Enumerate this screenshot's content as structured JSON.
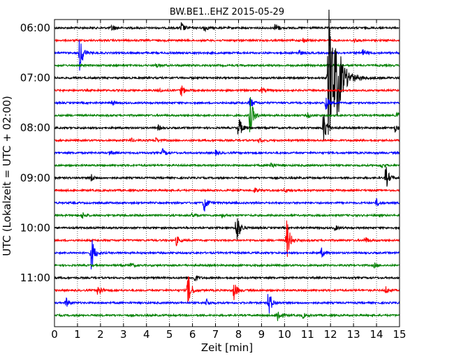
{
  "chart_data": {
    "type": "line",
    "title": "BW.BE1..EHZ 2015-05-29",
    "xlabel": "Zeit  [min]",
    "ylabel": "UTC (Lokalzeit = UTC + 02:00)",
    "xlim": [
      0,
      15
    ],
    "x_ticks": [
      "0",
      "1",
      "2",
      "3",
      "4",
      "5",
      "6",
      "7",
      "8",
      "9",
      "10",
      "11",
      "12",
      "13",
      "14",
      "15"
    ],
    "y_ticks": [
      "06:00",
      "07:00",
      "08:00",
      "09:00",
      "10:00",
      "11:00"
    ],
    "grid": "vertical dotted",
    "trace_interval_minutes": 15,
    "first_trace": "06:00",
    "colors": [
      "#000000",
      "#ff0000",
      "#0000ff",
      "#008000"
    ],
    "series": [
      {
        "start": "06:00",
        "events": [
          [
            2.5,
            0.3
          ],
          [
            5.5,
            0.5
          ],
          [
            6.5,
            0.3
          ],
          [
            9.6,
            0.4
          ]
        ]
      },
      {
        "start": "06:15",
        "events": [
          [
            10.8,
            0.2
          ],
          [
            13.0,
            0.15
          ]
        ]
      },
      {
        "start": "06:30",
        "events": [
          [
            1.1,
            1.6
          ],
          [
            10.6,
            0.3
          ],
          [
            13.4,
            0.3
          ]
        ]
      },
      {
        "start": "06:45",
        "events": [
          [
            4.4,
            0.2
          ],
          [
            11.9,
            0.2
          ]
        ]
      },
      {
        "start": "07:00",
        "events": [
          [
            11.9,
            6.0
          ],
          [
            12.3,
            1.8
          ]
        ]
      },
      {
        "start": "07:15",
        "events": [
          [
            4.5,
            0.2
          ],
          [
            5.5,
            0.5
          ],
          [
            9.0,
            0.2
          ]
        ]
      },
      {
        "start": "07:30",
        "events": [
          [
            2.5,
            0.2
          ],
          [
            8.5,
            0.5
          ],
          [
            11.8,
            0.6
          ]
        ]
      },
      {
        "start": "07:45",
        "events": [
          [
            8.5,
            1.7
          ],
          [
            11.0,
            0.2
          ],
          [
            14.9,
            0.3
          ]
        ]
      },
      {
        "start": "08:00",
        "events": [
          [
            4.5,
            0.2
          ],
          [
            8.0,
            1.0
          ],
          [
            11.7,
            1.5
          ],
          [
            14.8,
            0.3
          ]
        ]
      },
      {
        "start": "08:15",
        "events": [
          [
            3.3,
            0.2
          ],
          [
            4.4,
            0.2
          ],
          [
            8.9,
            0.2
          ]
        ]
      },
      {
        "start": "08:30",
        "events": [
          [
            2.4,
            0.2
          ],
          [
            4.7,
            0.3
          ],
          [
            7.0,
            0.2
          ]
        ]
      },
      {
        "start": "08:45",
        "events": [
          [
            9.4,
            0.3
          ],
          [
            14.2,
            0.2
          ]
        ]
      },
      {
        "start": "09:00",
        "events": [
          [
            1.6,
            0.3
          ],
          [
            14.4,
            1.0
          ]
        ]
      },
      {
        "start": "09:15",
        "events": [
          [
            8.7,
            0.2
          ],
          [
            10.0,
            0.2
          ]
        ]
      },
      {
        "start": "09:30",
        "events": [
          [
            6.5,
            0.8
          ],
          [
            14.0,
            0.3
          ]
        ]
      },
      {
        "start": "09:45",
        "events": [
          [
            1.2,
            0.3
          ],
          [
            6.0,
            0.2
          ],
          [
            7.3,
            0.2
          ]
        ]
      },
      {
        "start": "10:00",
        "events": [
          [
            7.9,
            1.6
          ],
          [
            12.2,
            0.2
          ]
        ]
      },
      {
        "start": "10:15",
        "events": [
          [
            5.3,
            0.4
          ],
          [
            10.1,
            1.8
          ],
          [
            13.5,
            0.3
          ]
        ]
      },
      {
        "start": "10:30",
        "events": [
          [
            1.6,
            1.5
          ],
          [
            11.6,
            0.4
          ]
        ]
      },
      {
        "start": "10:45",
        "events": [
          [
            3.3,
            0.2
          ],
          [
            13.9,
            0.2
          ]
        ]
      },
      {
        "start": "11:00",
        "events": [
          [
            6.1,
            0.3
          ]
        ]
      },
      {
        "start": "11:15",
        "events": [
          [
            1.9,
            0.6
          ],
          [
            5.8,
            1.5
          ],
          [
            7.8,
            0.8
          ],
          [
            14.4,
            0.3
          ]
        ]
      },
      {
        "start": "11:30",
        "events": [
          [
            0.5,
            0.4
          ],
          [
            6.6,
            0.3
          ],
          [
            9.3,
            1.2
          ]
        ]
      },
      {
        "start": "11:45",
        "events": [
          [
            9.7,
            0.6
          ],
          [
            10.8,
            0.2
          ]
        ]
      }
    ]
  }
}
